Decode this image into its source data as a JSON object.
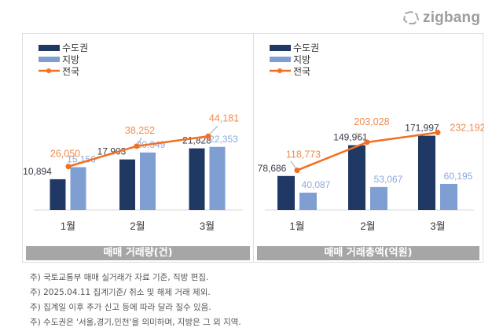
{
  "logo": {
    "text": "zigbang",
    "icon": "zigbang-logo-icon"
  },
  "colors": {
    "metro": "#203864",
    "regional": "#7f9fd3",
    "national": "#f26f21",
    "national_label": "#f08c50",
    "regional_label": "#8ea9db",
    "metro_label": "#3a3a4a",
    "caption_bg": "#a6a6a6"
  },
  "chart_data": [
    {
      "type": "bar",
      "title": "매매 거래량(건)",
      "categories": [
        "1월",
        "2월",
        "3월"
      ],
      "legend": [
        "수도권",
        "지방",
        "전국"
      ],
      "legend_placement": "top-left",
      "series": [
        {
          "name": "수도권",
          "kind": "bar",
          "values": [
            10894,
            17903,
            21828
          ],
          "labels": [
            "10,894",
            "17,903",
            "21,828"
          ]
        },
        {
          "name": "지방",
          "kind": "bar",
          "values": [
            15156,
            20349,
            22353
          ],
          "labels": [
            "15,156",
            "20,349",
            "22,353"
          ]
        },
        {
          "name": "전국",
          "kind": "line",
          "values": [
            26050,
            38252,
            44181
          ],
          "labels": [
            "26,050",
            "38,252",
            "44,181"
          ]
        }
      ],
      "bar_ylim": [
        0,
        39000
      ],
      "line_ylim": [
        0,
        66000
      ],
      "grid": false
    },
    {
      "type": "bar",
      "title": "매매 거래총액(억원)",
      "categories": [
        "1월",
        "2월",
        "3월"
      ],
      "legend": [
        "수도권",
        "지방",
        "전국"
      ],
      "legend_placement": "top-left",
      "series": [
        {
          "name": "수도권",
          "kind": "bar",
          "values": [
            78686,
            149961,
            171997
          ],
          "labels": [
            "78,686",
            "149,961",
            "171,997"
          ]
        },
        {
          "name": "지방",
          "kind": "bar",
          "values": [
            40087,
            53067,
            60195
          ],
          "labels": [
            "40,087",
            "53,067",
            "60,195"
          ]
        },
        {
          "name": "전국",
          "kind": "line",
          "values": [
            118773,
            203028,
            232192
          ],
          "labels": [
            "118,773",
            "203,028",
            "232,192"
          ]
        }
      ],
      "bar_ylim": [
        0,
        255000
      ],
      "line_ylim": [
        0,
        330000
      ],
      "grid": false
    }
  ],
  "notes": [
    "주) 국토교통부 매매 실거래가 자료 기준, 직방 편집.",
    "주) 2025.04.11 집계기준/ 취소 및 해제 거래 제외.",
    "주) 집계일 이후 추가 신고 등에 따라 달라 질수 있음.",
    "주) 수도권은 '서울,경기,인천'을 의미하며, 지방은 그 외 지역."
  ]
}
